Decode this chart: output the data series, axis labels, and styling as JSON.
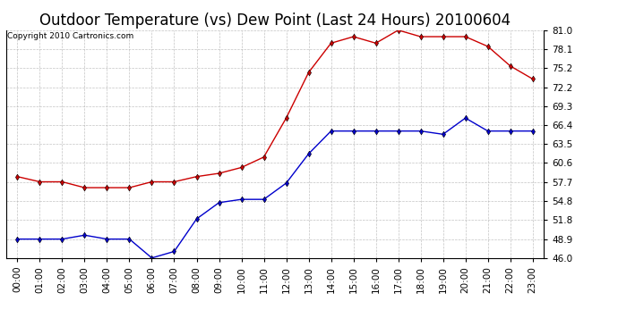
{
  "title": "Outdoor Temperature (vs) Dew Point (Last 24 Hours) 20100604",
  "copyright": "Copyright 2010 Cartronics.com",
  "hours": [
    "00:00",
    "01:00",
    "02:00",
    "03:00",
    "04:00",
    "05:00",
    "06:00",
    "07:00",
    "08:00",
    "09:00",
    "10:00",
    "11:00",
    "12:00",
    "13:00",
    "14:00",
    "15:00",
    "16:00",
    "17:00",
    "18:00",
    "19:00",
    "20:00",
    "21:00",
    "22:00",
    "23:00"
  ],
  "temp": [
    58.5,
    57.7,
    57.7,
    56.8,
    56.8,
    56.8,
    57.7,
    57.7,
    58.5,
    59.0,
    59.9,
    61.5,
    67.5,
    74.5,
    79.0,
    80.0,
    79.0,
    81.0,
    80.0,
    80.0,
    80.0,
    78.5,
    75.5,
    73.5
  ],
  "dew": [
    48.9,
    48.9,
    48.9,
    49.5,
    48.9,
    48.9,
    46.0,
    47.0,
    52.0,
    54.5,
    55.0,
    55.0,
    57.5,
    62.0,
    65.5,
    65.5,
    65.5,
    65.5,
    65.5,
    65.0,
    67.5,
    65.5,
    65.5,
    65.5
  ],
  "temp_color": "#cc0000",
  "dew_color": "#0000cc",
  "bg_color": "#ffffff",
  "grid_color": "#aaaaaa",
  "ylim": [
    46.0,
    81.0
  ],
  "yticks": [
    46.0,
    48.9,
    51.8,
    54.8,
    57.7,
    60.6,
    63.5,
    66.4,
    69.3,
    72.2,
    75.2,
    78.1,
    81.0
  ],
  "ytick_labels": [
    "46.0",
    "48.9",
    "51.8",
    "54.8",
    "57.7",
    "60.6",
    "63.5",
    "66.4",
    "69.3",
    "72.2",
    "75.2",
    "78.1",
    "81.0"
  ],
  "title_fontsize": 12,
  "copyright_fontsize": 6.5,
  "axis_fontsize": 7.5
}
